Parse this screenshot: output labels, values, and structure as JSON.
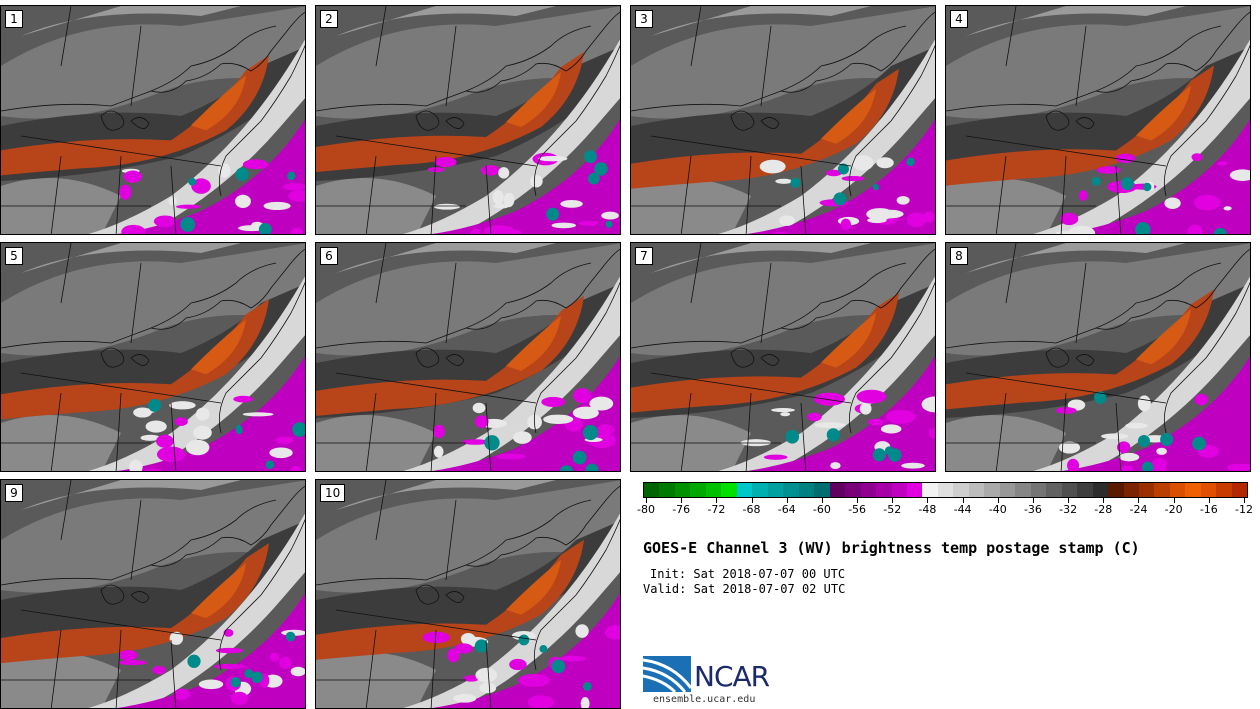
{
  "panels": [
    {
      "label": "1"
    },
    {
      "label": "2"
    },
    {
      "label": "3"
    },
    {
      "label": "4"
    },
    {
      "label": "5"
    },
    {
      "label": "6"
    },
    {
      "label": "7"
    },
    {
      "label": "8"
    },
    {
      "label": "9"
    },
    {
      "label": "10"
    }
  ],
  "colorbar": {
    "colors": [
      "#006400",
      "#007a00",
      "#009000",
      "#00a800",
      "#00c000",
      "#00e000",
      "#00c8c8",
      "#00b0b0",
      "#00a0a0",
      "#009090",
      "#008080",
      "#006e6e",
      "#600060",
      "#780078",
      "#900090",
      "#a800a8",
      "#c000c0",
      "#e000e0",
      "#f2f2f2",
      "#e0e0e0",
      "#cecece",
      "#bcbcbc",
      "#aaaaaa",
      "#989898",
      "#868686",
      "#747474",
      "#626262",
      "#505050",
      "#3e3e3e",
      "#2c2c2c",
      "#5a1a00",
      "#7a2400",
      "#9a3000",
      "#ba4000",
      "#d85000",
      "#f06000",
      "#e05000",
      "#c83c00",
      "#b42800"
    ],
    "tick_labels": [
      "-80",
      "-76",
      "-72",
      "-68",
      "-64",
      "-60",
      "-56",
      "-52",
      "-48",
      "-44",
      "-40",
      "-36",
      "-32",
      "-28",
      "-24",
      "-20",
      "-16",
      "-12"
    ]
  },
  "title": "GOES-E Channel 3 (WV) brightness temp postage stamp (C)",
  "init": "Init: Sat 2018-07-07 00 UTC",
  "valid": "Valid: Sat 2018-07-07 02 UTC",
  "logo": {
    "text": "NCAR",
    "site": "ensemble.ucar.edu"
  }
}
